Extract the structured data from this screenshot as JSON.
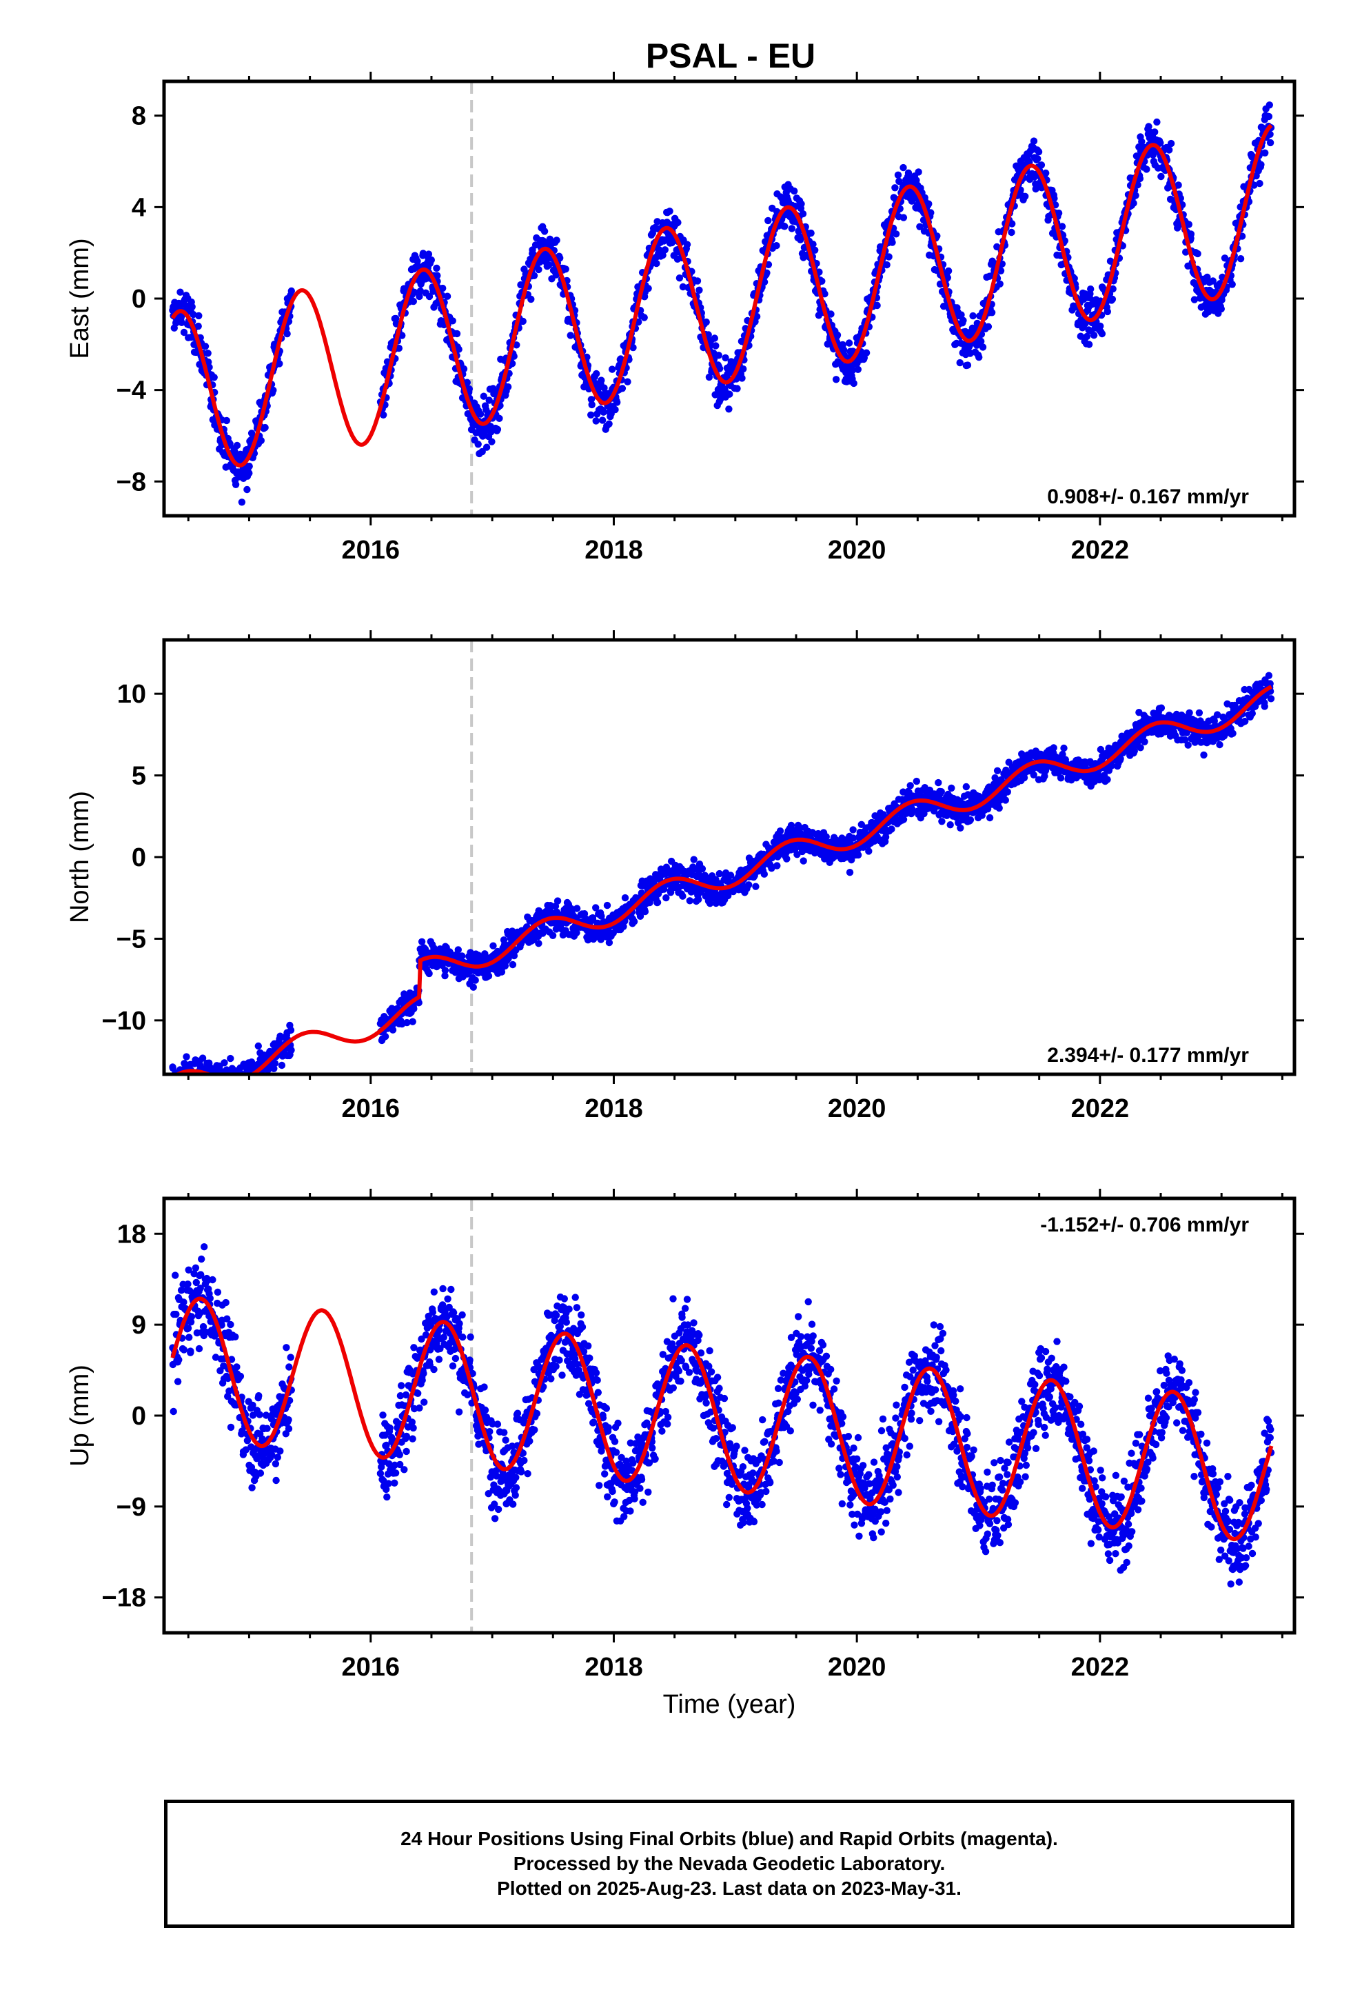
{
  "title": "PSAL - EU",
  "xlabel": "Time (year)",
  "colors": {
    "data": "#0000ee",
    "model": "#ee0000",
    "event_line": "#c8c8c8",
    "frame": "#000000"
  },
  "footer": {
    "line1": "24 Hour Positions Using Final Orbits (blue) and Rapid Orbits (magenta).",
    "line2": "Processed by the Nevada Geodetic Laboratory.",
    "line3": "Plotted on 2025-Aug-23. Last data on 2023-May-31."
  },
  "chart_data": [
    {
      "type": "scatter",
      "ylabel": "East (mm)",
      "rate_text": "0.908+/- 0.167 mm/yr",
      "xlim": [
        2014.3,
        2023.6
      ],
      "ylim": [
        -9.5,
        9.5
      ],
      "xticks": [
        2016,
        2018,
        2020,
        2022
      ],
      "yticks": [
        -8,
        -4,
        0,
        4,
        8
      ],
      "event_line_x": 2016.83,
      "trend": 0.908,
      "ref_value": 0.0,
      "ref_year": 2019.0,
      "annual_amp": 3.6,
      "phase_year": 2019.43,
      "data_gap": [
        2015.35,
        2016.08
      ],
      "noise": 0.9,
      "series": [
        {
          "name": "Final Orbits",
          "style": "points",
          "x_start": 2014.37,
          "x_end": 2023.41
        },
        {
          "name": "Model",
          "style": "line",
          "x_start": 2014.37,
          "x_end": 2023.41
        }
      ]
    },
    {
      "type": "scatter",
      "ylabel": "North (mm)",
      "rate_text": "2.394+/- 0.177 mm/yr",
      "xlim": [
        2014.3,
        2023.6
      ],
      "ylim": [
        -13.3,
        13.3
      ],
      "xticks": [
        2016,
        2018,
        2020,
        2022
      ],
      "yticks": [
        -10,
        -5,
        0,
        5,
        10
      ],
      "event_line_x": 2016.83,
      "trend": 2.394,
      "ref_value": -0.9,
      "ref_year": 2019.0,
      "annual_amp": 0.8,
      "phase_year": 2019.45,
      "step": {
        "year": 2016.4,
        "value": 2.2
      },
      "data_gap": [
        2015.35,
        2016.08
      ],
      "noise": 0.8,
      "series": [
        {
          "name": "Final Orbits",
          "style": "points",
          "x_start": 2014.37,
          "x_end": 2023.41
        },
        {
          "name": "Model",
          "style": "line",
          "x_start": 2014.37,
          "x_end": 2023.41
        }
      ]
    },
    {
      "type": "scatter",
      "ylabel": "Up (mm)",
      "rate_text": "-1.152+/- 0.706 mm/yr",
      "xlim": [
        2014.3,
        2023.6
      ],
      "ylim": [
        -21.5,
        21.5
      ],
      "xticks": [
        2016,
        2018,
        2020,
        2022
      ],
      "yticks": [
        -18,
        -9,
        0,
        9,
        18
      ],
      "event_line_x": 2016.83,
      "trend": -1.152,
      "ref_value": -0.5,
      "ref_year": 2019.0,
      "annual_amp": 7.0,
      "phase_year": 2019.6,
      "data_gap": [
        2015.35,
        2016.08
      ],
      "noise": 3.6,
      "series": [
        {
          "name": "Final Orbits",
          "style": "points",
          "x_start": 2014.37,
          "x_end": 2023.41
        },
        {
          "name": "Model",
          "style": "line",
          "x_start": 2014.37,
          "x_end": 2023.41
        }
      ]
    }
  ]
}
